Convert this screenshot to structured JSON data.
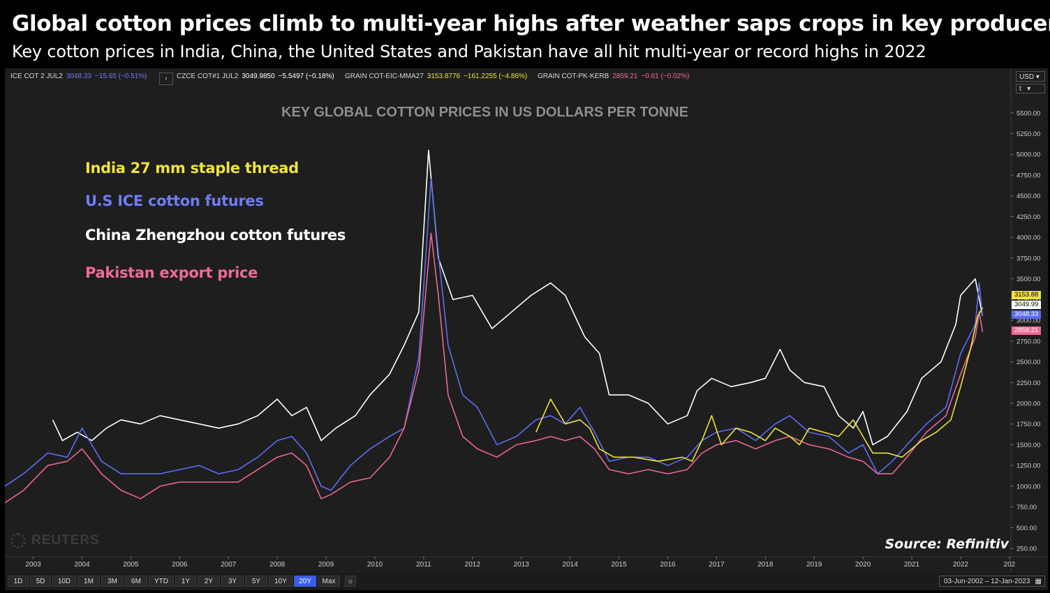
{
  "header": {
    "title": "Global cotton prices climb to multi-year highs after weather saps crops in key producers",
    "subtitle": "Key cotton prices in India, China, the United States and Pakistan have all hit multi-year or record highs in 2022"
  },
  "tickers": [
    {
      "symbol": "ICE COT 2 JUL2",
      "price": "3048.33",
      "change": "−15.65 (−0.51%)",
      "color": "#6f7cf5"
    },
    {
      "symbol": "CZCE COT#1 JUL2",
      "price": "3049.9850",
      "change": "−5.5497 (−0.18%)",
      "color": "#ffffff"
    },
    {
      "symbol": "GRAIN COT-EIC-MMA27",
      "price": "3153.8776",
      "change": "−161.2255 (−4.86%)",
      "color": "#f0e33a"
    },
    {
      "symbol": "GRAIN COT-PK-KERB",
      "price": "2859.21",
      "change": "−0.61 (−0.02%)",
      "color": "#f06a95"
    }
  ],
  "chart_ui": {
    "collapse_icon": "‹",
    "currency": "USD",
    "currency_caret": "▾",
    "unit": "t",
    "unit_caret": "▾",
    "watermark": "REUTERS",
    "source": "Source: Refinitiv",
    "ranges": [
      "1D",
      "5D",
      "10D",
      "1M",
      "3M",
      "6M",
      "YTD",
      "1Y",
      "2Y",
      "3Y",
      "5Y",
      "10Y",
      "20Y",
      "Max"
    ],
    "active_range": "20Y",
    "date_range": "03-Jun-2002  –  12-Jan-2023",
    "calendar_icon": "▦",
    "settings_icon": "☼"
  },
  "price_tags": [
    {
      "value": "3153.88",
      "bg": "#f0e33a",
      "fg": "#000000"
    },
    {
      "value": "3049.99",
      "bg": "#ffffff",
      "fg": "#000000"
    },
    {
      "value": "3048.33",
      "bg": "#5a6bf0",
      "fg": "#ffffff"
    },
    {
      "value": "2859.21",
      "bg": "#f06a95",
      "fg": "#ffffff"
    }
  ],
  "chart_data": {
    "type": "line",
    "title": "KEY GLOBAL COTTON PRICES IN US DOLLARS PER TONNE",
    "xlabel": "",
    "ylabel": "",
    "x_ticks": [
      "2003",
      "2004",
      "2005",
      "2006",
      "2007",
      "2008",
      "2009",
      "2010",
      "2011",
      "2012",
      "2013",
      "2014",
      "2015",
      "2016",
      "2017",
      "2018",
      "2019",
      "2020",
      "2021",
      "2022",
      "202"
    ],
    "y_ticks": [
      250,
      500,
      750,
      1000,
      1250,
      1500,
      1750,
      2000,
      2250,
      2500,
      2750,
      3000,
      3250,
      3500,
      3750,
      4000,
      4250,
      4500,
      4750,
      5000,
      5250,
      5500
    ],
    "xlim": [
      2002.42,
      2023.03
    ],
    "ylim": [
      150,
      5700
    ],
    "grid": false,
    "legend_position": "top-left",
    "series": [
      {
        "name": "India 27 mm staple thread",
        "color": "#f0e33a",
        "points": [
          [
            2013.3,
            1650
          ],
          [
            2013.6,
            2050
          ],
          [
            2013.9,
            1750
          ],
          [
            2014.2,
            1800
          ],
          [
            2014.4,
            1700
          ],
          [
            2014.6,
            1450
          ],
          [
            2014.9,
            1350
          ],
          [
            2015.3,
            1350
          ],
          [
            2015.8,
            1300
          ],
          [
            2016.3,
            1350
          ],
          [
            2016.5,
            1300
          ],
          [
            2016.7,
            1550
          ],
          [
            2016.9,
            1850
          ],
          [
            2017.1,
            1500
          ],
          [
            2017.4,
            1700
          ],
          [
            2017.7,
            1650
          ],
          [
            2018.0,
            1550
          ],
          [
            2018.2,
            1700
          ],
          [
            2018.5,
            1600
          ],
          [
            2018.7,
            1500
          ],
          [
            2018.9,
            1700
          ],
          [
            2019.2,
            1650
          ],
          [
            2019.5,
            1600
          ],
          [
            2019.8,
            1800
          ],
          [
            2020.0,
            1600
          ],
          [
            2020.2,
            1400
          ],
          [
            2020.5,
            1400
          ],
          [
            2020.8,
            1350
          ],
          [
            2021.2,
            1550
          ],
          [
            2021.5,
            1650
          ],
          [
            2021.8,
            1800
          ],
          [
            2022.0,
            2200
          ],
          [
            2022.2,
            2650
          ],
          [
            2022.35,
            3050
          ],
          [
            2022.45,
            3153.88
          ]
        ]
      },
      {
        "name": "U.S ICE cotton futures",
        "color": "#5f6df2",
        "points": [
          [
            2002.42,
            1000
          ],
          [
            2002.8,
            1150
          ],
          [
            2003.3,
            1400
          ],
          [
            2003.7,
            1350
          ],
          [
            2004.0,
            1700
          ],
          [
            2004.4,
            1300
          ],
          [
            2004.8,
            1150
          ],
          [
            2005.2,
            1150
          ],
          [
            2005.6,
            1150
          ],
          [
            2006.0,
            1200
          ],
          [
            2006.4,
            1250
          ],
          [
            2006.8,
            1150
          ],
          [
            2007.2,
            1200
          ],
          [
            2007.6,
            1350
          ],
          [
            2008.0,
            1550
          ],
          [
            2008.3,
            1600
          ],
          [
            2008.6,
            1400
          ],
          [
            2008.9,
            1000
          ],
          [
            2009.1,
            950
          ],
          [
            2009.5,
            1250
          ],
          [
            2009.9,
            1450
          ],
          [
            2010.3,
            1600
          ],
          [
            2010.6,
            1700
          ],
          [
            2010.9,
            2550
          ],
          [
            2011.15,
            4700
          ],
          [
            2011.3,
            3800
          ],
          [
            2011.5,
            2700
          ],
          [
            2011.8,
            2100
          ],
          [
            2012.1,
            1950
          ],
          [
            2012.5,
            1500
          ],
          [
            2012.9,
            1600
          ],
          [
            2013.3,
            1800
          ],
          [
            2013.6,
            1850
          ],
          [
            2013.9,
            1750
          ],
          [
            2014.2,
            1950
          ],
          [
            2014.5,
            1650
          ],
          [
            2014.8,
            1300
          ],
          [
            2015.2,
            1350
          ],
          [
            2015.6,
            1350
          ],
          [
            2016.0,
            1250
          ],
          [
            2016.4,
            1350
          ],
          [
            2016.7,
            1550
          ],
          [
            2017.0,
            1650
          ],
          [
            2017.4,
            1700
          ],
          [
            2017.8,
            1550
          ],
          [
            2018.2,
            1750
          ],
          [
            2018.5,
            1850
          ],
          [
            2018.9,
            1650
          ],
          [
            2019.3,
            1600
          ],
          [
            2019.7,
            1400
          ],
          [
            2020.0,
            1500
          ],
          [
            2020.3,
            1150
          ],
          [
            2020.6,
            1300
          ],
          [
            2020.9,
            1500
          ],
          [
            2021.3,
            1750
          ],
          [
            2021.7,
            1950
          ],
          [
            2022.0,
            2600
          ],
          [
            2022.3,
            2950
          ],
          [
            2022.38,
            3450
          ],
          [
            2022.45,
            3048.33
          ]
        ]
      },
      {
        "name": "China Zhengzhou cotton futures",
        "color": "#ffffff",
        "points": [
          [
            2003.4,
            1800
          ],
          [
            2003.6,
            1550
          ],
          [
            2003.9,
            1650
          ],
          [
            2004.2,
            1550
          ],
          [
            2004.5,
            1700
          ],
          [
            2004.8,
            1800
          ],
          [
            2005.2,
            1750
          ],
          [
            2005.6,
            1850
          ],
          [
            2006.0,
            1800
          ],
          [
            2006.4,
            1750
          ],
          [
            2006.8,
            1700
          ],
          [
            2007.2,
            1750
          ],
          [
            2007.6,
            1850
          ],
          [
            2008.0,
            2050
          ],
          [
            2008.3,
            1850
          ],
          [
            2008.6,
            1950
          ],
          [
            2008.9,
            1550
          ],
          [
            2009.2,
            1700
          ],
          [
            2009.6,
            1850
          ],
          [
            2009.9,
            2100
          ],
          [
            2010.3,
            2350
          ],
          [
            2010.6,
            2700
          ],
          [
            2010.9,
            3100
          ],
          [
            2011.1,
            5050
          ],
          [
            2011.3,
            3750
          ],
          [
            2011.6,
            3250
          ],
          [
            2012.0,
            3300
          ],
          [
            2012.4,
            2900
          ],
          [
            2012.8,
            3100
          ],
          [
            2013.2,
            3300
          ],
          [
            2013.6,
            3450
          ],
          [
            2013.9,
            3300
          ],
          [
            2014.3,
            2800
          ],
          [
            2014.6,
            2600
          ],
          [
            2014.8,
            2100
          ],
          [
            2015.2,
            2100
          ],
          [
            2015.6,
            2000
          ],
          [
            2016.0,
            1750
          ],
          [
            2016.4,
            1850
          ],
          [
            2016.6,
            2150
          ],
          [
            2016.9,
            2300
          ],
          [
            2017.3,
            2200
          ],
          [
            2017.7,
            2250
          ],
          [
            2018.0,
            2300
          ],
          [
            2018.3,
            2650
          ],
          [
            2018.5,
            2400
          ],
          [
            2018.8,
            2250
          ],
          [
            2019.2,
            2200
          ],
          [
            2019.5,
            1850
          ],
          [
            2019.8,
            1700
          ],
          [
            2020.0,
            1900
          ],
          [
            2020.2,
            1500
          ],
          [
            2020.5,
            1600
          ],
          [
            2020.9,
            1900
          ],
          [
            2021.2,
            2300
          ],
          [
            2021.6,
            2500
          ],
          [
            2021.9,
            2950
          ],
          [
            2022.0,
            3300
          ],
          [
            2022.3,
            3500
          ],
          [
            2022.45,
            3049.99
          ]
        ]
      },
      {
        "name": "Pakistan export price",
        "color": "#ef6593",
        "points": [
          [
            2002.42,
            800
          ],
          [
            2002.8,
            950
          ],
          [
            2003.3,
            1250
          ],
          [
            2003.7,
            1300
          ],
          [
            2004.0,
            1450
          ],
          [
            2004.4,
            1150
          ],
          [
            2004.8,
            950
          ],
          [
            2005.2,
            850
          ],
          [
            2005.6,
            1000
          ],
          [
            2006.0,
            1050
          ],
          [
            2006.4,
            1050
          ],
          [
            2006.8,
            1050
          ],
          [
            2007.2,
            1050
          ],
          [
            2007.6,
            1200
          ],
          [
            2008.0,
            1350
          ],
          [
            2008.3,
            1400
          ],
          [
            2008.6,
            1250
          ],
          [
            2008.9,
            850
          ],
          [
            2009.1,
            900
          ],
          [
            2009.5,
            1050
          ],
          [
            2009.9,
            1100
          ],
          [
            2010.3,
            1350
          ],
          [
            2010.6,
            1700
          ],
          [
            2010.9,
            2400
          ],
          [
            2011.15,
            4050
          ],
          [
            2011.3,
            3300
          ],
          [
            2011.5,
            2100
          ],
          [
            2011.8,
            1600
          ],
          [
            2012.1,
            1450
          ],
          [
            2012.5,
            1350
          ],
          [
            2012.9,
            1500
          ],
          [
            2013.3,
            1550
          ],
          [
            2013.6,
            1600
          ],
          [
            2013.9,
            1550
          ],
          [
            2014.2,
            1600
          ],
          [
            2014.5,
            1450
          ],
          [
            2014.8,
            1200
          ],
          [
            2015.2,
            1150
          ],
          [
            2015.6,
            1200
          ],
          [
            2016.0,
            1150
          ],
          [
            2016.4,
            1200
          ],
          [
            2016.7,
            1400
          ],
          [
            2017.0,
            1500
          ],
          [
            2017.4,
            1550
          ],
          [
            2017.8,
            1450
          ],
          [
            2018.2,
            1550
          ],
          [
            2018.5,
            1600
          ],
          [
            2018.9,
            1500
          ],
          [
            2019.3,
            1450
          ],
          [
            2019.7,
            1350
          ],
          [
            2020.0,
            1300
          ],
          [
            2020.3,
            1150
          ],
          [
            2020.6,
            1150
          ],
          [
            2020.9,
            1350
          ],
          [
            2021.3,
            1650
          ],
          [
            2021.7,
            1850
          ],
          [
            2022.0,
            2350
          ],
          [
            2022.3,
            2800
          ],
          [
            2022.38,
            3100
          ],
          [
            2022.45,
            2859.21
          ]
        ]
      }
    ]
  }
}
